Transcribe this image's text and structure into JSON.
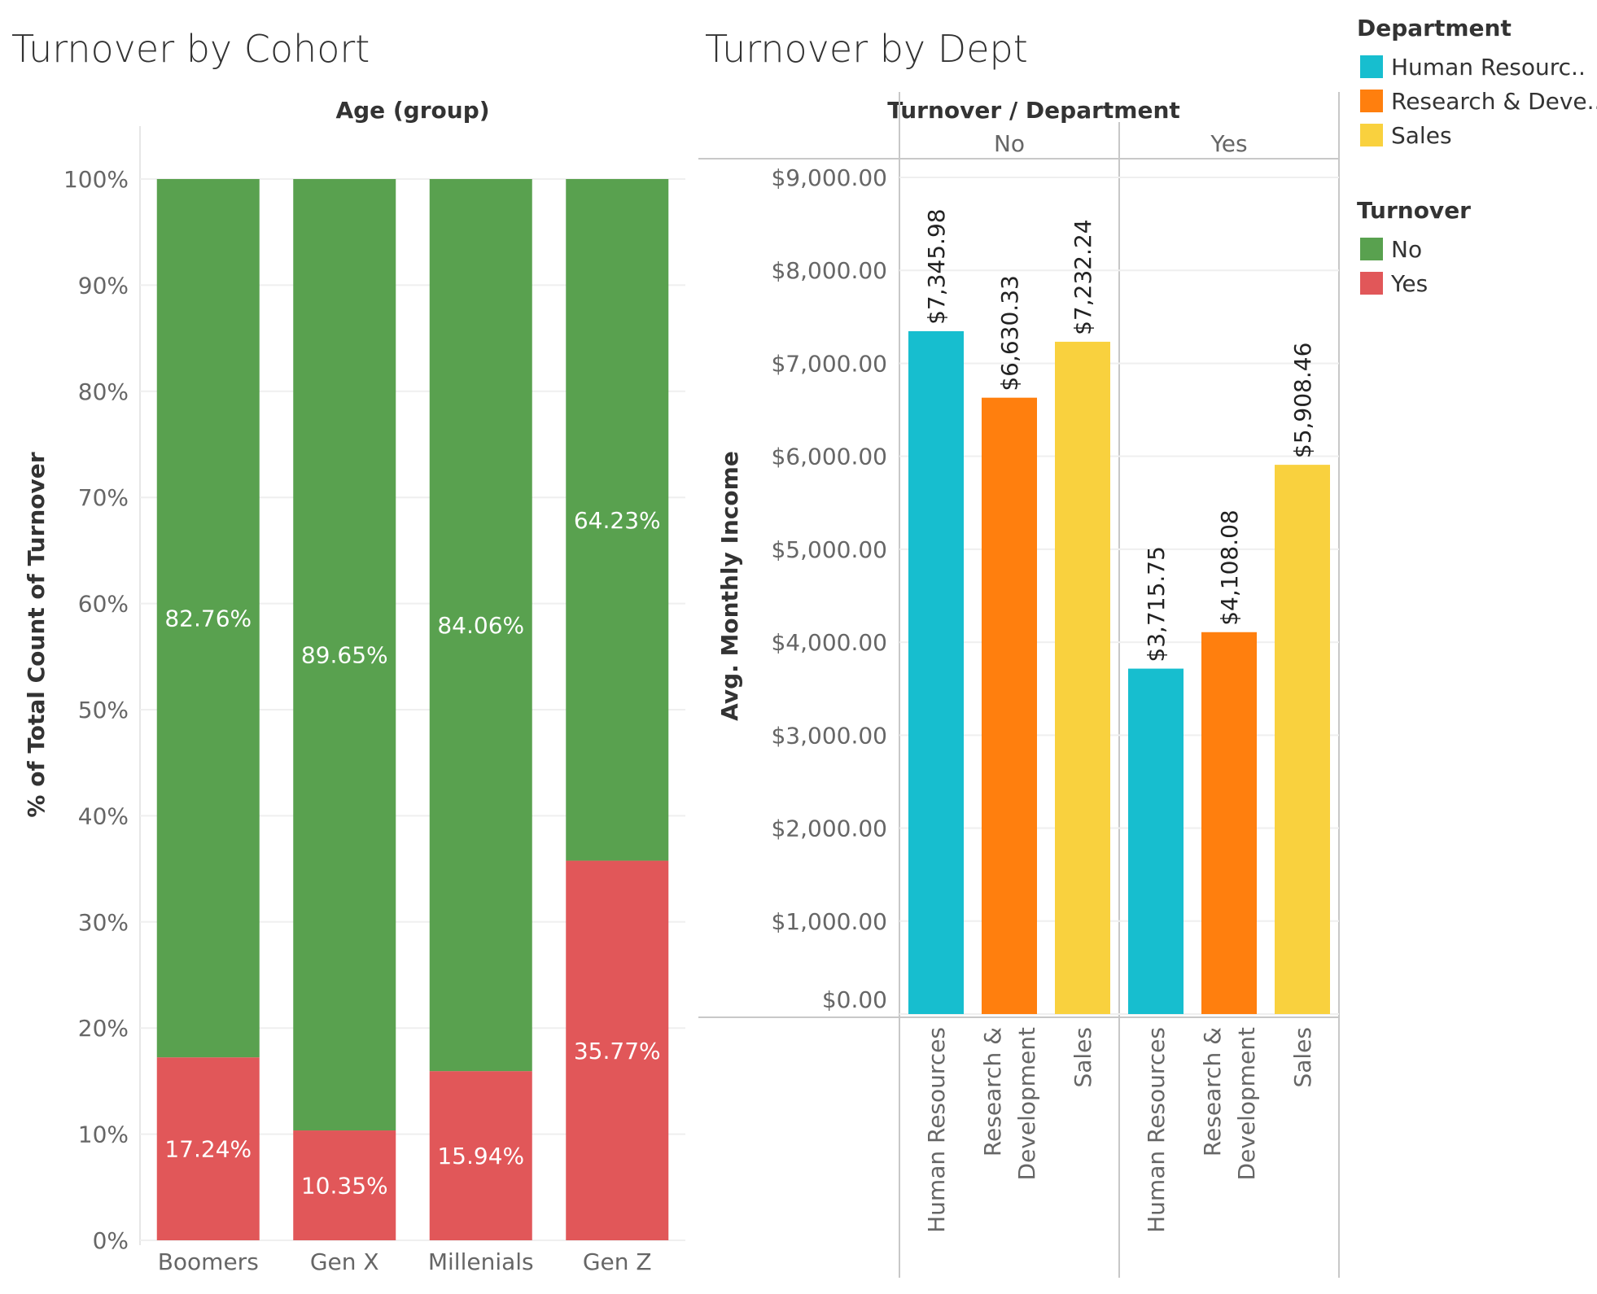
{
  "chart_data": [
    {
      "type": "bar",
      "stacked": true,
      "title": "Turnover by Cohort",
      "column_header": "Age (group)",
      "categories": [
        "Boomers",
        "Gen X",
        "Millenials",
        "Gen Z"
      ],
      "series": [
        {
          "name": "Yes",
          "color": "#e15759",
          "values": [
            17.24,
            10.35,
            15.94,
            35.77
          ],
          "labels": [
            "17.24%",
            "10.35%",
            "15.94%",
            "35.77%"
          ]
        },
        {
          "name": "No",
          "color": "#59a14f",
          "values": [
            82.76,
            89.65,
            84.06,
            64.23
          ],
          "labels": [
            "82.76%",
            "89.65%",
            "84.06%",
            "64.23%"
          ]
        }
      ],
      "ylabel": "% of Total Count of Turnover",
      "ylim": [
        0,
        100
      ],
      "yticks": [
        0,
        10,
        20,
        30,
        40,
        50,
        60,
        70,
        80,
        90,
        100
      ],
      "ytick_labels": [
        "0%",
        "10%",
        "20%",
        "30%",
        "40%",
        "50%",
        "60%",
        "70%",
        "80%",
        "90%",
        "100%"
      ]
    },
    {
      "type": "bar",
      "title": "Turnover by Dept",
      "column_header": "Turnover / Department",
      "groups": [
        {
          "name": "No",
          "bars": [
            {
              "category": "Human Resources",
              "axis_label": [
                "Human Resources"
              ],
              "value": 7345.98,
              "label": "$7,345.98",
              "color": "#17becf"
            },
            {
              "category": "Research & Development",
              "axis_label": [
                "Research &",
                "Development"
              ],
              "value": 6630.33,
              "label": "$6,630.33",
              "color": "#ff7f0e"
            },
            {
              "category": "Sales",
              "axis_label": [
                "Sales"
              ],
              "value": 7232.24,
              "label": "$7,232.24",
              "color": "#f9d13e"
            }
          ]
        },
        {
          "name": "Yes",
          "bars": [
            {
              "category": "Human Resources",
              "axis_label": [
                "Human Resources"
              ],
              "value": 3715.75,
              "label": "$3,715.75",
              "color": "#17becf"
            },
            {
              "category": "Research & Development",
              "axis_label": [
                "Research &",
                "Development"
              ],
              "value": 4108.08,
              "label": "$4,108.08",
              "color": "#ff7f0e"
            },
            {
              "category": "Sales",
              "axis_label": [
                "Sales"
              ],
              "value": 5908.46,
              "label": "$5,908.46",
              "color": "#f9d13e"
            }
          ]
        }
      ],
      "ylabel": "Avg. Monthly Income",
      "ylim": [
        0,
        9000
      ],
      "yticks": [
        0,
        1000,
        2000,
        3000,
        4000,
        5000,
        6000,
        7000,
        8000,
        9000
      ],
      "ytick_labels": [
        "$0.00",
        "$1,000.00",
        "$2,000.00",
        "$3,000.00",
        "$4,000.00",
        "$5,000.00",
        "$6,000.00",
        "$7,000.00",
        "$8,000.00",
        "$9,000.00"
      ]
    }
  ],
  "legends": [
    {
      "title": "Department",
      "items": [
        {
          "label": "Human Resourc..",
          "color": "#17becf"
        },
        {
          "label": "Research & Deve..",
          "color": "#ff7f0e"
        },
        {
          "label": "Sales",
          "color": "#f9d13e"
        }
      ]
    },
    {
      "title": "Turnover",
      "items": [
        {
          "label": "No",
          "color": "#59a14f"
        },
        {
          "label": "Yes",
          "color": "#e15759"
        }
      ]
    }
  ]
}
